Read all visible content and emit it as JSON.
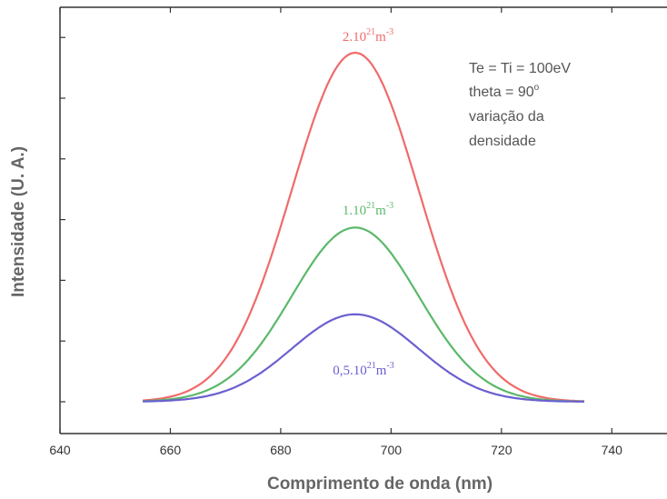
{
  "chart_data": {
    "type": "line",
    "xlabel": "Comprimento de onda (nm)",
    "ylabel": "Intensidade (U. A.)",
    "xlim": [
      640,
      750
    ],
    "ylim": [
      0,
      10
    ],
    "x_ticks": [
      "640",
      "660",
      "680",
      "700",
      "720",
      "740"
    ],
    "grid": false,
    "annotations": [
      "Te = Ti = 100eV",
      "theta = 90",
      "variação da",
      "densidade"
    ],
    "series": [
      {
        "name": "2.10^21m^-3",
        "label_parts": {
          "base": "2.10",
          "exp1": "21",
          "unit": "m",
          "exp2": "-3"
        },
        "color": "#f06a6a",
        "peak_x": 693.5,
        "peak_y": 5.75,
        "sigma": 11.5,
        "x_range": [
          655,
          735
        ]
      },
      {
        "name": "1.10^21m^-3",
        "label_parts": {
          "base": "1.10",
          "exp1": "21",
          "unit": "m",
          "exp2": "-3"
        },
        "color": "#5bb86a",
        "peak_x": 693.5,
        "peak_y": 2.87,
        "sigma": 11.5,
        "x_range": [
          655,
          735
        ]
      },
      {
        "name": "0,5.10^21m^-3",
        "label_parts": {
          "base": "0,5.10",
          "exp1": "21",
          "unit": "m",
          "exp2": "-3"
        },
        "color": "#6a5fd0",
        "peak_x": 693.5,
        "peak_y": 1.44,
        "sigma": 11.5,
        "x_range": [
          655,
          735
        ]
      }
    ],
    "note_superscript": "o"
  }
}
